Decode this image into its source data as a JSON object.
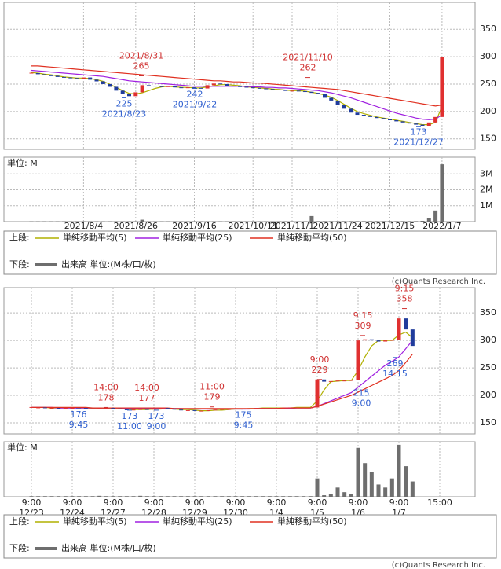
{
  "chart_data": [
    {
      "type": "candlestick",
      "categories": [
        null,
        null,
        null,
        null,
        null,
        null,
        null,
        null,
        "2021/8/4",
        null,
        null,
        null,
        null,
        null,
        null,
        null,
        "2021/8/26",
        null,
        null,
        null,
        null,
        null,
        null,
        null,
        null,
        "2021/9/16",
        null,
        null,
        null,
        null,
        null,
        null,
        null,
        null,
        "2021/10/11",
        null,
        null,
        null,
        null,
        null,
        "2021/11/1",
        null,
        null,
        null,
        null,
        null,
        null,
        "2021/11/24",
        null,
        null,
        null,
        null,
        null,
        null,
        null,
        "2021/12/15",
        null,
        null,
        null,
        null,
        null,
        null,
        null,
        "2022/1/7"
      ],
      "values": [
        270,
        268,
        266,
        265,
        263,
        262,
        261,
        260,
        262,
        258,
        255,
        250,
        245,
        238,
        232,
        228,
        235,
        248,
        247,
        246,
        245,
        246,
        244,
        243,
        244,
        243,
        242,
        248,
        251,
        250,
        247,
        246,
        245,
        244,
        243,
        242,
        241,
        240,
        239,
        238,
        238,
        237,
        236,
        234,
        232,
        225,
        220,
        212,
        205,
        198,
        194,
        192,
        190,
        188,
        186,
        184,
        182,
        180,
        178,
        176,
        174,
        180,
        190,
        300
      ],
      "up_color": "#e03030",
      "down_color": "#203c9c",
      "series": [
        {
          "name": "単純移動平均(5)",
          "color": "#b0b000",
          "values": [
            271,
            270,
            268,
            267,
            265,
            263,
            262,
            261,
            261,
            260,
            258,
            255,
            250,
            244,
            238,
            233,
            232,
            234,
            238,
            242,
            245,
            246,
            245,
            244,
            244,
            243,
            243,
            245,
            247,
            249,
            249,
            248,
            247,
            245,
            244,
            243,
            242,
            241,
            240,
            239,
            238,
            238,
            237,
            235,
            233,
            230,
            226,
            220,
            213,
            206,
            200,
            196,
            193,
            190,
            188,
            186,
            184,
            182,
            180,
            178,
            176,
            176,
            180,
            210
          ]
        },
        {
          "name": "単純移動平均(25)",
          "color": "#a020e0",
          "values": [
            275,
            274,
            273,
            272,
            271,
            270,
            269,
            268,
            267,
            266,
            265,
            264,
            262,
            260,
            258,
            256,
            255,
            254,
            253,
            252,
            251,
            250,
            249,
            248,
            247,
            246,
            246,
            246,
            246,
            246,
            246,
            246,
            246,
            246,
            245,
            245,
            244,
            244,
            243,
            243,
            242,
            241,
            240,
            239,
            238,
            236,
            234,
            231,
            228,
            225,
            221,
            217,
            213,
            209,
            205,
            201,
            197,
            194,
            191,
            188,
            186,
            185,
            186,
            194
          ]
        },
        {
          "name": "単純移動平均(50)",
          "color": "#e03020",
          "values": [
            283,
            283,
            282,
            281,
            280,
            279,
            278,
            277,
            276,
            275,
            274,
            273,
            272,
            271,
            270,
            269,
            268,
            267,
            266,
            265,
            264,
            263,
            262,
            261,
            260,
            259,
            258,
            257,
            256,
            256,
            255,
            254,
            254,
            253,
            252,
            252,
            251,
            250,
            249,
            248,
            247,
            246,
            245,
            244,
            243,
            242,
            241,
            240,
            238,
            236,
            234,
            232,
            230,
            228,
            226,
            224,
            222,
            220,
            218,
            216,
            214,
            212,
            210,
            212
          ]
        }
      ],
      "ylim": [
        131,
        399
      ],
      "yticks": [
        150,
        200,
        250,
        300,
        350
      ],
      "grid": true,
      "highs": [
        {
          "label": "2021/8/31",
          "value": 265
        },
        {
          "label": "2021/11/10",
          "value": 262
        }
      ],
      "lows": [
        {
          "label": "2021/8/23",
          "value": 225
        },
        {
          "label": "2021/9/22",
          "value": 242
        },
        {
          "label": "2021/12/27",
          "value": 173
        }
      ],
      "high_color": "#d03030",
      "low_color": "#3060d0",
      "volume": {
        "name": "出来高 単位:(M株/口/枚)",
        "unit_label": "単位: M",
        "color": "#6e6e6e",
        "values": [
          0.02,
          0.02,
          0.02,
          0.02,
          0.02,
          0.02,
          0.02,
          0.02,
          0.02,
          0.02,
          0.02,
          0.02,
          0.02,
          0.02,
          0.02,
          0.02,
          0.02,
          0.12,
          0.02,
          0.02,
          0.02,
          0.02,
          0.02,
          0.02,
          0.02,
          0.02,
          0.02,
          0.02,
          0.02,
          0.02,
          0.02,
          0.02,
          0.02,
          0.02,
          0.02,
          0.02,
          0.02,
          0.02,
          0.02,
          0.02,
          0.02,
          0.02,
          0.02,
          0.35,
          0.03,
          0.03,
          0.03,
          0.03,
          0.03,
          0.03,
          0.03,
          0.03,
          0.03,
          0.03,
          0.03,
          0.03,
          0.03,
          0.03,
          0.03,
          0.03,
          0.05,
          0.2,
          0.7,
          3.6
        ],
        "ylim": [
          0,
          4.05
        ],
        "yticks": [
          {
            "value": 1,
            "label": "1M"
          },
          {
            "value": 2,
            "label": "2M"
          },
          {
            "value": 3,
            "label": "3M"
          }
        ]
      },
      "upper_label": "上段:",
      "lower_label": "下段:",
      "source": "(c)Quants Research Inc."
    },
    {
      "type": "candlestick",
      "categories": [
        "9:00\n12/23",
        null,
        null,
        null,
        null,
        null,
        "9:00\n12/24",
        null,
        null,
        null,
        null,
        null,
        "9:00\n12/27",
        null,
        null,
        null,
        null,
        null,
        "9:00\n12/28",
        null,
        null,
        null,
        null,
        null,
        "9:00\n12/29",
        null,
        null,
        null,
        null,
        null,
        "9:00\n12/30",
        null,
        null,
        null,
        null,
        null,
        "9:00\n1/4",
        null,
        null,
        null,
        null,
        null,
        "9:00\n1/5",
        null,
        null,
        null,
        null,
        null,
        "9:00\n1/6",
        null,
        null,
        null,
        null,
        null,
        "9:00\n1/7",
        null,
        null,
        null,
        null,
        null,
        "15:00"
      ],
      "values": [
        178,
        178,
        177,
        177,
        176,
        177,
        177,
        177,
        176,
        176,
        177,
        177,
        176,
        175,
        173,
        174,
        175,
        174,
        176,
        177,
        176,
        174,
        173,
        173,
        172,
        172,
        173,
        174,
        175,
        175,
        176,
        176,
        176,
        177,
        177,
        177,
        177,
        177,
        178,
        178,
        178,
        178,
        229,
        225,
        226,
        227,
        227,
        228,
        300,
        302,
        300,
        298,
        300,
        301,
        340,
        320,
        290,
        null,
        null,
        null,
        null
      ],
      "up_color": "#e03030",
      "down_color": "#203c9c",
      "series": [
        {
          "name": "単純移動平均(5)",
          "color": "#b0b000",
          "values": [
            178,
            178,
            178,
            177,
            177,
            177,
            177,
            177,
            177,
            176,
            176,
            177,
            176,
            176,
            175,
            174,
            174,
            174,
            175,
            175,
            176,
            175,
            174,
            174,
            173,
            172,
            172,
            173,
            173,
            174,
            175,
            175,
            176,
            176,
            177,
            177,
            177,
            177,
            177,
            178,
            178,
            178,
            190,
            210,
            225,
            226,
            227,
            227,
            245,
            270,
            290,
            300,
            300,
            300,
            310,
            315,
            305,
            null,
            null,
            null,
            null
          ]
        },
        {
          "name": "単純移動平均(25)",
          "color": "#a020e0",
          "values": [
            178,
            178,
            178,
            178,
            177,
            177,
            177,
            177,
            177,
            177,
            177,
            177,
            177,
            177,
            176,
            176,
            176,
            176,
            176,
            176,
            176,
            176,
            176,
            175,
            175,
            175,
            175,
            175,
            175,
            175,
            175,
            175,
            175,
            176,
            176,
            176,
            176,
            176,
            176,
            177,
            177,
            177,
            180,
            185,
            190,
            195,
            200,
            205,
            215,
            225,
            235,
            245,
            255,
            262,
            270,
            285,
            300,
            null,
            null,
            null,
            null
          ]
        },
        {
          "name": "単純移動平均(50)",
          "color": "#e03020",
          "values": [
            178,
            178,
            178,
            178,
            178,
            178,
            178,
            178,
            178,
            177,
            177,
            177,
            177,
            177,
            177,
            177,
            177,
            177,
            177,
            177,
            177,
            176,
            176,
            176,
            176,
            176,
            176,
            176,
            176,
            176,
            176,
            176,
            176,
            176,
            176,
            176,
            176,
            177,
            177,
            177,
            177,
            177,
            180,
            184,
            188,
            192,
            196,
            200,
            206,
            212,
            218,
            224,
            230,
            236,
            245,
            260,
            275,
            null,
            null,
            null,
            null
          ]
        }
      ],
      "ylim": [
        130,
        396
      ],
      "yticks": [
        150,
        200,
        250,
        300,
        350
      ],
      "grid": true,
      "highs": [
        {
          "label": "14:00",
          "value": 178
        },
        {
          "label": "14:00",
          "value": 177
        },
        {
          "label": "11:00",
          "value": 179
        },
        {
          "label": "9:00",
          "value": 229
        },
        {
          "label": "9:15",
          "value": 309
        },
        {
          "label": "9:15",
          "value": 358
        }
      ],
      "lows": [
        {
          "label": "9:45",
          "value": 176
        },
        {
          "label": "11:00",
          "value": 173
        },
        {
          "label": "9:00",
          "value": 173
        },
        {
          "label": "9:45",
          "value": 175
        },
        {
          "label": "9:00",
          "value": 215
        },
        {
          "label": "14:15",
          "value": 269
        }
      ],
      "high_color": "#d03030",
      "low_color": "#3060d0",
      "volume": {
        "name": "出来高 単位:(M株/口/枚)",
        "unit_label": "単位: M",
        "color": "#6e6e6e",
        "values": [
          0.02,
          0.02,
          0.02,
          0.02,
          0.02,
          0.02,
          0.02,
          0.02,
          0.02,
          0.02,
          0.03,
          0.02,
          0.02,
          0.02,
          0.02,
          0.02,
          0.03,
          0.02,
          0.02,
          0.02,
          0.02,
          0.02,
          0.02,
          0.02,
          0.02,
          0.02,
          0.02,
          0.02,
          0.02,
          0.02,
          0.02,
          0.02,
          0.02,
          0.02,
          0.02,
          0.02,
          0.02,
          0.02,
          0.02,
          0.02,
          0.02,
          0.02,
          0.6,
          0.05,
          0.1,
          0.3,
          0.15,
          0.1,
          1.6,
          1.1,
          0.8,
          0.4,
          0.3,
          0.6,
          1.7,
          1.0,
          0.5,
          null,
          null,
          null,
          null
        ],
        "ylim": [
          0,
          1.8
        ],
        "yticks": []
      },
      "upper_label": "上段:",
      "lower_label": "下段:",
      "source": "(c)Quants Research Inc."
    }
  ]
}
